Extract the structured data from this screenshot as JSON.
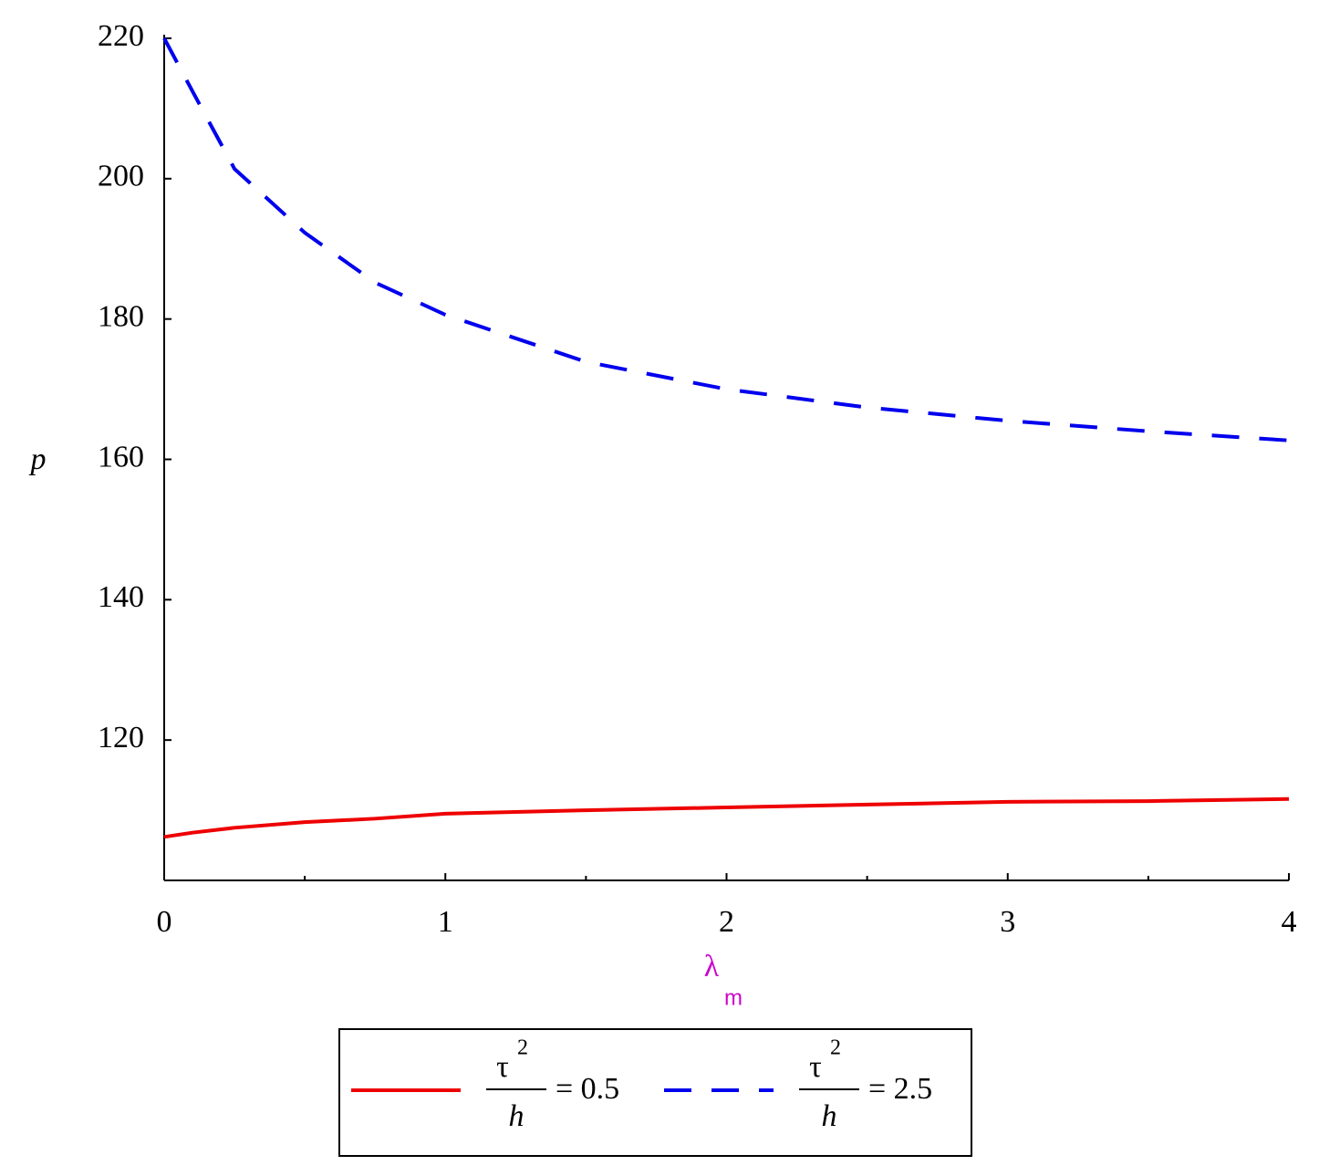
{
  "chart_data": {
    "type": "line",
    "ylabel": "p",
    "xlabel": {
      "symbol": "λ",
      "subscript": "m"
    },
    "x": [
      0,
      0.1,
      0.25,
      0.5,
      0.75,
      1,
      1.5,
      2,
      2.5,
      3,
      3.5,
      4
    ],
    "series": [
      {
        "name": {
          "numerator": "τ",
          "superscript": "2",
          "denominator": "h",
          "rhs": "= 0.5"
        },
        "color": "#ee0000",
        "dash": "solid",
        "values": [
          106.2,
          106.8,
          107.5,
          108.3,
          108.8,
          109.5,
          110.0,
          110.4,
          110.8,
          111.2,
          111.3,
          111.6
        ]
      },
      {
        "name": {
          "numerator": "τ",
          "superscript": "2",
          "denominator": "h",
          "rhs": "= 2.5"
        },
        "color": "#0000ee",
        "dash": "dash",
        "values": [
          220,
          212.5,
          201.4,
          192.3,
          185.2,
          180.6,
          173.9,
          170.0,
          167.4,
          165.5,
          164.0,
          162.7
        ]
      }
    ],
    "xlim": [
      0,
      4
    ],
    "ylim": [
      100,
      220
    ],
    "xticks": [
      0,
      1,
      2,
      3,
      4
    ],
    "xminorticks": [
      0.5,
      1.5,
      2.5,
      3.5
    ],
    "yticks": [
      120,
      140,
      160,
      180,
      200,
      220
    ],
    "grid": false
  }
}
